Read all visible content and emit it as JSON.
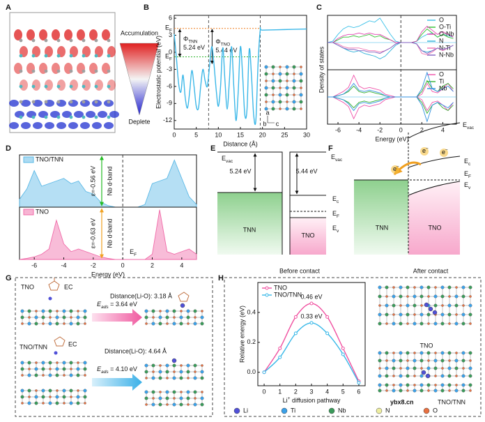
{
  "panel_labels": [
    "A",
    "B",
    "C",
    "D",
    "E",
    "F",
    "G",
    "H"
  ],
  "panel_a": {
    "top": "Accumulation",
    "bottom": "Deplete"
  },
  "chart_data": [
    {
      "type": "line",
      "smooth": true,
      "xlabel": "Distance (Å)",
      "ylabel": "Electrostatic potential (eV)",
      "x": [
        0,
        0.5,
        1,
        1.5,
        2,
        2.5,
        3,
        3.5,
        4,
        4.5,
        5,
        5.5,
        6,
        6.5,
        7,
        7.5,
        8,
        8.5,
        9,
        9.5,
        10,
        10.5,
        11,
        11.5,
        12,
        12.5,
        13,
        13.5,
        14,
        14.5,
        15,
        15.5,
        16,
        16.5,
        17,
        17.5,
        18,
        18.5,
        19,
        19.5,
        20,
        25,
        30
      ],
      "series": [
        {
          "color": "#3ab7e8",
          "values": [
            3.2,
            -1,
            -5.5,
            -7,
            -4,
            -8,
            -9.8,
            -7,
            -3.2,
            -6,
            -9.5,
            -9.8,
            -6,
            -3,
            -5,
            -6,
            -2.5,
            1,
            -2,
            -6.5,
            -9.5,
            -6,
            0.8,
            -5,
            -10,
            -5,
            1,
            -6,
            -12,
            -7,
            1,
            -4,
            -11,
            -10,
            0.5,
            -4,
            -11,
            -12,
            -2,
            3.9,
            3.9,
            4.0,
            4.1
          ]
        }
      ],
      "xlim": [
        0,
        30
      ],
      "xticks": [
        0,
        5,
        10,
        15,
        20,
        25,
        30
      ],
      "ylim": [
        -13.5,
        6.5
      ],
      "yticks": [
        6,
        3,
        0,
        -3,
        -6,
        -9,
        -12
      ],
      "interfaces": [
        7.8,
        19.5
      ],
      "levels": [
        {
          "label": {
            "main": "E",
            "sub": "F"
          },
          "value": 4.2,
          "color": "#f07f1e"
        },
        {
          "label": {
            "main": "E",
            "sub": "F"
          },
          "value": -0.8,
          "color": "#2bb52b"
        }
      ],
      "work_functions": [
        {
          "symbol": {
            "main": "Φ",
            "sub": "TNN"
          },
          "text": "5.24 eV"
        },
        {
          "symbol": {
            "main": "Φ",
            "sub": "TNO"
          },
          "text": "5.44 eV"
        }
      ],
      "inset_axes": [
        "a",
        "b",
        "c"
      ]
    },
    {
      "type": "dos",
      "xlabel": "Energy (eV)",
      "ylabel": "Density of states",
      "x": [
        -7,
        -6.5,
        -6,
        -5.5,
        -5,
        -4.5,
        -4,
        -3.5,
        -3,
        -2.5,
        -2,
        -1.5,
        -1,
        -0.5,
        0,
        0.5,
        1,
        1.5,
        2,
        2.5,
        3,
        3.5,
        4,
        4.5,
        5
      ],
      "xlim": [
        -7,
        5.3
      ],
      "xticks": [
        -6,
        -4,
        -2,
        0,
        2,
        4
      ],
      "fermi_level": 0,
      "boxes": [
        {
          "ylim": [
            -1,
            1
          ],
          "mirrored": false,
          "fill": false,
          "legend": "upper right",
          "series": [
            {
              "name": "O",
              "color": "#38c0e8",
              "values": [
                0,
                0.05,
                0.3,
                0.5,
                0.6,
                0.55,
                0.6,
                0.7,
                0.8,
                0.75,
                0.9,
                0.6,
                0.3,
                0.05,
                0,
                0,
                0,
                0.05,
                0.2,
                0.3,
                0.35,
                0.2,
                0.3,
                0.25,
                0.2
              ]
            },
            {
              "name": "O-Ti",
              "color": "#30c030",
              "values": [
                0,
                0,
                0.1,
                0.2,
                0.2,
                0.25,
                0.2,
                0.25,
                0.3,
                0.2,
                0.25,
                0.15,
                0.1,
                0,
                0,
                0,
                0,
                0.05,
                0.3,
                0.5,
                0.35,
                0.2,
                0.3,
                0.2,
                0.15
              ]
            },
            {
              "name": "O-Nb",
              "color": "#e040b0",
              "values": [
                0,
                0,
                0.15,
                0.25,
                0.3,
                0.3,
                0.35,
                0.3,
                0.35,
                0.3,
                0.3,
                0.2,
                0.1,
                0,
                0,
                0,
                0,
                0.05,
                0.4,
                0.6,
                0.45,
                0.3,
                0.4,
                0.3,
                0.2
              ]
            },
            {
              "name": "N",
              "color": "#2ab0d8",
              "values": [
                0,
                0,
                -0.1,
                -0.2,
                -0.3,
                -0.35,
                -0.3,
                -0.4,
                -0.45,
                -0.5,
                -0.6,
                -0.5,
                -0.3,
                -0.1,
                0,
                0,
                0,
                -0.05,
                -0.3,
                -0.35,
                -0.3,
                -0.2,
                -0.3,
                -0.2,
                -0.1
              ]
            },
            {
              "name": "N-Ti",
              "color": "#f070b0",
              "values": [
                0,
                0,
                -0.05,
                -0.15,
                -0.2,
                -0.2,
                -0.2,
                -0.25,
                -0.3,
                -0.3,
                -0.35,
                -0.3,
                -0.2,
                -0.05,
                0,
                0,
                0,
                -0.05,
                -0.4,
                -0.45,
                -0.35,
                -0.2,
                -0.3,
                -0.2,
                -0.1
              ]
            },
            {
              "name": "N-Nb",
              "color": "#8060c0",
              "values": [
                0,
                0,
                -0.1,
                -0.2,
                -0.25,
                -0.25,
                -0.3,
                -0.3,
                -0.35,
                -0.35,
                -0.4,
                -0.3,
                -0.2,
                -0.05,
                0,
                0,
                0,
                -0.05,
                -0.3,
                -0.4,
                -0.3,
                -0.2,
                -0.25,
                -0.2,
                -0.1
              ]
            }
          ]
        },
        {
          "ylim": [
            -1,
            1
          ],
          "mirrored": true,
          "fill": false,
          "legend": "upper right",
          "series": [
            {
              "name": "O",
              "color": "#f050a8",
              "values": [
                0,
                0,
                0.1,
                0.2,
                0.35,
                0.8,
                0.4,
                0.3,
                0.35,
                0.3,
                0.25,
                0.1,
                0.05,
                0,
                0,
                0,
                0,
                0,
                0.1,
                0.5,
                0.2,
                0.15,
                0.3,
                0.5,
                0.2
              ]
            },
            {
              "name": "Ti",
              "color": "#30b030",
              "values": [
                0,
                0,
                0.05,
                0.1,
                0.2,
                0.4,
                0.2,
                0.15,
                0.2,
                0.15,
                0.1,
                0.05,
                0,
                0,
                0,
                0,
                0,
                0,
                0.2,
                0.6,
                0.3,
                0.2,
                0.4,
                0.5,
                0.3
              ]
            },
            {
              "name": "Nb",
              "color": "#3090e0",
              "values": [
                0,
                0,
                0.05,
                0.1,
                0.25,
                0.5,
                0.25,
                0.2,
                0.25,
                0.2,
                0.15,
                0.05,
                0,
                0,
                0,
                0,
                0,
                0,
                0.3,
                0.9,
                0.3,
                0.2,
                0.3,
                0.4,
                0.2
              ]
            }
          ]
        }
      ]
    },
    {
      "type": "dos",
      "xlabel": "Energy (eV)",
      "x": [
        -7,
        -6.5,
        -6,
        -5.5,
        -5,
        -4.5,
        -4,
        -3.5,
        -3,
        -2.5,
        -2,
        -1.5,
        -1,
        -0.5,
        0,
        0.5,
        1,
        1.5,
        2,
        2.5,
        3,
        3.5,
        4,
        4.5,
        5
      ],
      "xlim": [
        -7,
        5
      ],
      "xticks": [
        -6,
        -4,
        -2,
        0,
        2,
        4
      ],
      "fermi_level": 0,
      "boxes": [
        {
          "ylim": [
            0,
            1
          ],
          "mirrored": false,
          "fill": true,
          "legend": "upper left",
          "series": [
            {
              "name": "TNO/TNN",
              "color": "#5ab8e6",
              "values": [
                0.15,
                0.35,
                0.7,
                0.4,
                0.45,
                0.5,
                0.55,
                0.45,
                0.5,
                0.3,
                0.25,
                0.1,
                0.03,
                0,
                0,
                0,
                0,
                0.05,
                0.45,
                0.5,
                0.55,
                0.9,
                0.55,
                0.2,
                0.05
              ]
            }
          ]
        },
        {
          "ylim": [
            0,
            1
          ],
          "mirrored": false,
          "fill": true,
          "legend": "upper left",
          "series": [
            {
              "name": "TNO",
              "color": "#f06aa8",
              "values": [
                0,
                0.02,
                0.05,
                0.1,
                0.2,
                0.75,
                0.3,
                0.15,
                0.2,
                0.15,
                0.1,
                0.05,
                0.02,
                0,
                0,
                0,
                0,
                0,
                0.1,
                0.95,
                0.15,
                0.1,
                0.15,
                0.2,
                0.1
              ]
            }
          ]
        }
      ],
      "annotations": [
        {
          "text": "ε=-0.56 eV",
          "note": "Nb d-band",
          "color": "#22bb22"
        },
        {
          "text": "ε=-0.63 eV",
          "note": "Nb d-band",
          "color": "#f0a020"
        }
      ],
      "ef_label": {
        "main": "E",
        "sub": "F"
      }
    },
    {
      "type": "line",
      "smooth": true,
      "markers": true,
      "ylabel": "Relative energy (eV)",
      "xlabel": {
        "main": "Li",
        "sup": "+",
        "rest": " diffusion pathway"
      },
      "x": [
        0,
        1,
        2,
        3,
        4,
        5,
        6
      ],
      "xlim": [
        -0.4,
        6.4
      ],
      "xticks": [
        0,
        1,
        2,
        3,
        4,
        5,
        6
      ],
      "ylim": [
        -0.09,
        0.6
      ],
      "yticks": [
        {
          "value": 0,
          "label": "0.0"
        },
        0.2,
        0.4
      ],
      "legend": "upper left",
      "series": [
        {
          "name": "TNO",
          "color": "#f050a0",
          "values": [
            0,
            0.16,
            0.37,
            0.46,
            0.37,
            0.16,
            -0.06
          ],
          "value_labels": [
            null,
            null,
            null,
            "0.46 eV",
            null,
            null,
            null
          ]
        },
        {
          "name": "TNO/TNN",
          "color": "#38b8e8",
          "values": [
            0,
            0.1,
            0.26,
            0.33,
            0.26,
            0.12,
            -0.07
          ],
          "value_labels": [
            null,
            null,
            null,
            "0.33 eV",
            null,
            null,
            null
          ]
        }
      ]
    }
  ],
  "panel_e": {
    "vac_left": {
      "main": "E",
      "sub": "vac"
    },
    "phi_tnn": "5.24 eV",
    "phi_tno": "5.44 eV",
    "vac_right": {
      "main": "E",
      "sub": "vac"
    },
    "ec": {
      "main": "E",
      "sub": "c"
    },
    "ef": {
      "main": "E",
      "sub": "F"
    },
    "ev": {
      "main": "E",
      "sub": "v"
    },
    "left": "TNN",
    "right": "TNO"
  },
  "panel_f": {
    "vac": {
      "main": "E",
      "sub": "vac"
    },
    "ec": {
      "main": "E",
      "sub": "c"
    },
    "ef": {
      "main": "E",
      "sub": "F"
    },
    "ev": {
      "main": "E",
      "sub": "v"
    },
    "left": "TNN",
    "right": "TNO",
    "electrons": [
      {
        "main": "e",
        "sup": "−"
      },
      {
        "main": "e",
        "sup": "−"
      },
      {
        "main": "e",
        "sup": "−"
      }
    ]
  },
  "panel_g": {
    "top_label": "TNO",
    "molecule_top": "EC",
    "distance_top": "Distance(Li-O): 3.18 Å",
    "eads_top": {
      "main": "E",
      "sub": "ads",
      "rest": " = 3.64 eV",
      "italic": true
    },
    "bottom_label": "TNO/TNN",
    "molecule_bottom": "EC",
    "distance_bottom": "Distance(Li-O): 4.64 Å",
    "eads_bottom": {
      "main": "E",
      "sub": "ads",
      "rest": " = 4.10 eV",
      "italic": true
    }
  },
  "panel_h": {
    "before": "Before contact",
    "after": "After contact",
    "structure_top": "TNO",
    "structure_bottom": "TNO/TNN",
    "watermark": "ybx8.cn",
    "atoms": [
      {
        "name": "Li",
        "color": "#5050d8"
      },
      {
        "name": "Ti",
        "color": "#3aa0e8"
      },
      {
        "name": "Nb",
        "color": "#3a9a5a"
      },
      {
        "name": "N",
        "color": "#eeeea0"
      },
      {
        "name": "O",
        "color": "#e87040"
      }
    ]
  }
}
